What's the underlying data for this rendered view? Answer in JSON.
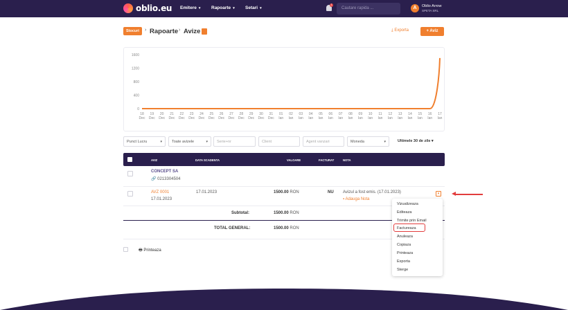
{
  "brand": {
    "name": "oblio.eu"
  },
  "nav": {
    "items": [
      {
        "label": "Emitere",
        "chevron": "▾"
      },
      {
        "label": "Rapoarte",
        "chevron": "▾"
      },
      {
        "label": "Setari",
        "chevron": "▾"
      }
    ],
    "notification_count": "1",
    "search_placeholder": "Cautare rapida ...",
    "user": {
      "initial": "A",
      "name": "Oblio Arrow",
      "company": "SPETA SRL"
    }
  },
  "heading": {
    "stocuri_label": "Stocuri",
    "separator": "›",
    "rapoarte": "Rapoarte",
    "avize": "Avize",
    "exporta_label": "Exporta",
    "aviz_label": "+ Aviz"
  },
  "chart_data": {
    "type": "line",
    "title": "",
    "xlabel": "",
    "ylabel": "",
    "ylim": [
      0,
      1600
    ],
    "yticks": [
      0,
      400,
      800,
      1200,
      1600
    ],
    "x": [
      [
        "18",
        "Dec"
      ],
      [
        "19",
        "Dec"
      ],
      [
        "20",
        "Dec"
      ],
      [
        "21",
        "Dec"
      ],
      [
        "22",
        "Dec"
      ],
      [
        "23",
        "Dec"
      ],
      [
        "24",
        "Dec"
      ],
      [
        "25",
        "Dec"
      ],
      [
        "26",
        "Dec"
      ],
      [
        "27",
        "Dec"
      ],
      [
        "28",
        "Dec"
      ],
      [
        "29",
        "Dec"
      ],
      [
        "30",
        "Dec"
      ],
      [
        "31",
        "Dec"
      ],
      [
        "01",
        "Ian"
      ],
      [
        "02",
        "Ian"
      ],
      [
        "03",
        "Ian"
      ],
      [
        "04",
        "Ian"
      ],
      [
        "05",
        "Ian"
      ],
      [
        "06",
        "Ian"
      ],
      [
        "07",
        "Ian"
      ],
      [
        "08",
        "Ian"
      ],
      [
        "09",
        "Ian"
      ],
      [
        "10",
        "Ian"
      ],
      [
        "11",
        "Ian"
      ],
      [
        "12",
        "Ian"
      ],
      [
        "13",
        "Ian"
      ],
      [
        "14",
        "Ian"
      ],
      [
        "15",
        "Ian"
      ],
      [
        "16",
        "Ian"
      ],
      [
        "17",
        "Ian"
      ]
    ],
    "series": [
      {
        "values": [
          0,
          0,
          0,
          0,
          0,
          0,
          0,
          0,
          0,
          0,
          0,
          0,
          0,
          0,
          0,
          0,
          0,
          0,
          0,
          0,
          0,
          0,
          0,
          0,
          0,
          0,
          0,
          0,
          0,
          0,
          1500
        ],
        "color": "#f07f2e"
      }
    ],
    "grid": false
  },
  "filters": {
    "punct_lucru": "Punct Lucru",
    "toate_avizele": "Toate avizele",
    "serie_nr": "Serie+nr",
    "client": "Client",
    "agent_vanzari": "Agent vanzari",
    "moneda": "Moneda",
    "perioada": "Ultimele 30 de zile",
    "chevron": "▾"
  },
  "table": {
    "headers": {
      "aviz": "AVIZ",
      "data_scadenta": "DATA SCADENTA",
      "valoare": "VALOARE",
      "facturat": "FACTURAT",
      "nota": "NOTA"
    },
    "group": {
      "client": "CONCEPT SA",
      "phone": "🔗 0213304504"
    },
    "row": {
      "aviz": "AVZ 0001",
      "date": "17.01.2023",
      "data_scadenta": "17.01.2023",
      "valoare": "1500.00",
      "currency": "RON",
      "facturat": "NU",
      "nota": "Avizul a fost emis. (17.01.2023)",
      "adauga_nota": "Adauga Nota",
      "toggle": "▾"
    },
    "subtotal_label": "Subtotal:",
    "subtotal_value": "1500.00",
    "total_label": "TOTAL GENERAL:",
    "total_value": "1500.00",
    "currency": "RON"
  },
  "printeaza": "Printeaza",
  "menu": {
    "items": [
      "Vizualizeaza",
      "Editeaza",
      "Trimite prin Email",
      "Factureaza",
      "Anuleaza",
      "Copiaza",
      "Printeaza",
      "Exporta",
      "Sterge"
    ]
  },
  "colors": {
    "accent": "#f07f2e",
    "nav_bg": "#2a1f4d",
    "annotation": "#e23c3c"
  }
}
